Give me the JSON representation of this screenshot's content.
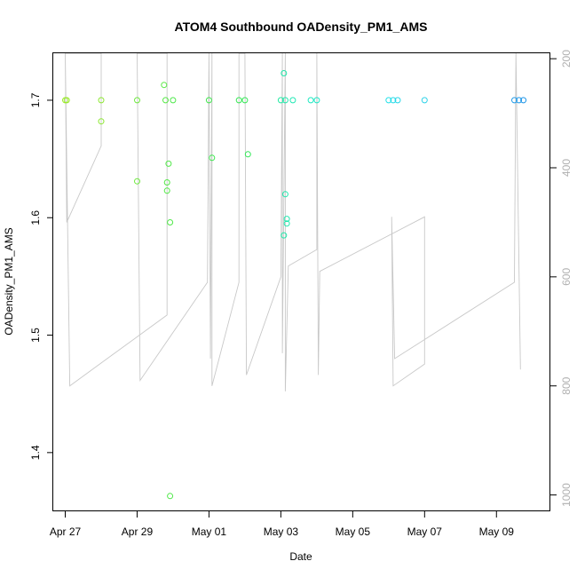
{
  "chart_data": {
    "type": "scatter",
    "title": "ATOM4 Southbound OADensity_PM1_AMS",
    "xlabel": "Date",
    "ylabel": "OADensity_PM1_AMS",
    "x_ticks": [
      "Apr 27",
      "Apr 29",
      "May 01",
      "May 03",
      "May 05",
      "May 07",
      "May 09"
    ],
    "xlim": [
      "2021-04-26T16:00",
      "2021-05-10T12:00"
    ],
    "ylim": [
      1.35,
      1.74
    ],
    "y_ticks": [
      1.4,
      1.5,
      1.6,
      1.7
    ],
    "y2_ticks": [
      200,
      400,
      600,
      800,
      1000
    ],
    "y2lim_top_to_bottom": [
      190,
      1030
    ],
    "grid": false,
    "series": [
      {
        "type": "scatter",
        "marker": "open-circle",
        "points": [
          {
            "x": "2021-04-27T00:00",
            "y": 1.7,
            "color": "#9be82a"
          },
          {
            "x": "2021-04-27T01:00",
            "y": 1.7,
            "color": "#98e82b"
          },
          {
            "x": "2021-04-28T00:00",
            "y": 1.7,
            "color": "#8de832"
          },
          {
            "x": "2021-04-28T00:00",
            "y": 1.682,
            "color": "#8de832"
          },
          {
            "x": "2021-04-29T00:00",
            "y": 1.7,
            "color": "#6ee83e"
          },
          {
            "x": "2021-04-29T00:00",
            "y": 1.631,
            "color": "#6ee83e"
          },
          {
            "x": "2021-04-29T18:00",
            "y": 1.713,
            "color": "#58e844"
          },
          {
            "x": "2021-04-29T19:00",
            "y": 1.7,
            "color": "#55e845"
          },
          {
            "x": "2021-04-29T20:00",
            "y": 1.63,
            "color": "#52e846"
          },
          {
            "x": "2021-04-29T20:00",
            "y": 1.623,
            "color": "#52e846"
          },
          {
            "x": "2021-04-29T21:00",
            "y": 1.646,
            "color": "#50e847"
          },
          {
            "x": "2021-04-29T22:00",
            "y": 1.596,
            "color": "#4fe848"
          },
          {
            "x": "2021-04-29T22:00",
            "y": 1.363,
            "color": "#4fe848"
          },
          {
            "x": "2021-04-30T00:00",
            "y": 1.7,
            "color": "#4ce849"
          },
          {
            "x": "2021-05-01T00:00",
            "y": 1.7,
            "color": "#3fe84d"
          },
          {
            "x": "2021-05-01T02:00",
            "y": 1.651,
            "color": "#3de84e"
          },
          {
            "x": "2021-05-01T20:00",
            "y": 1.7,
            "color": "#34e853"
          },
          {
            "x": "2021-05-02T00:00",
            "y": 1.7,
            "color": "#32e855"
          },
          {
            "x": "2021-05-02T02:00",
            "y": 1.654,
            "color": "#30e856"
          },
          {
            "x": "2021-05-03T00:00",
            "y": 1.7,
            "color": "#22e8a2"
          },
          {
            "x": "2021-05-03T02:00",
            "y": 1.723,
            "color": "#20e8aa"
          },
          {
            "x": "2021-05-03T03:00",
            "y": 1.7,
            "color": "#20e8ac"
          },
          {
            "x": "2021-05-03T03:00",
            "y": 1.62,
            "color": "#20e8ac"
          },
          {
            "x": "2021-05-03T04:00",
            "y": 1.599,
            "color": "#1fe8ae"
          },
          {
            "x": "2021-05-03T04:00",
            "y": 1.595,
            "color": "#1fe8ae"
          },
          {
            "x": "2021-05-03T02:00",
            "y": 1.585,
            "color": "#20e8aa"
          },
          {
            "x": "2021-05-03T08:00",
            "y": 1.7,
            "color": "#1ee8b4"
          },
          {
            "x": "2021-05-03T20:00",
            "y": 1.7,
            "color": "#1de8c0"
          },
          {
            "x": "2021-05-04T00:00",
            "y": 1.7,
            "color": "#1ce8c5"
          },
          {
            "x": "2021-05-06T00:00",
            "y": 1.7,
            "color": "#22e0e8"
          },
          {
            "x": "2021-05-06T03:00",
            "y": 1.7,
            "color": "#24dbe8"
          },
          {
            "x": "2021-05-06T06:00",
            "y": 1.7,
            "color": "#26d6e8"
          },
          {
            "x": "2021-05-07T00:00",
            "y": 1.7,
            "color": "#2cd2e8"
          },
          {
            "x": "2021-05-09T12:00",
            "y": 1.7,
            "color": "#1f9ae8"
          },
          {
            "x": "2021-05-09T15:00",
            "y": 1.7,
            "color": "#1f98e8"
          },
          {
            "x": "2021-05-09T18:00",
            "y": 1.7,
            "color": "#1f96e8"
          }
        ]
      },
      {
        "type": "line",
        "axis": "right",
        "color": "#c8c8c8",
        "points": [
          [
            "2021-04-27T00:00",
            190
          ],
          [
            "2021-04-27T01:00",
            500
          ],
          [
            "2021-04-28T00:00",
            360
          ],
          [
            "2021-04-28T00:00",
            190
          ],
          [
            "2021-04-27T00:00",
            190
          ],
          [
            "2021-04-27T03:00",
            800
          ],
          [
            "2021-04-29T20:00",
            670
          ],
          [
            "2021-04-29T20:00",
            190
          ],
          [
            "2021-04-29T00:00",
            190
          ],
          [
            "2021-04-29T02:00",
            790
          ],
          [
            "2021-04-30T23:00",
            610
          ],
          [
            "2021-05-01T00:00",
            190
          ],
          [
            "2021-05-01T01:00",
            750
          ],
          [
            "2021-05-01T02:00",
            190
          ],
          [
            "2021-05-01T02:00",
            800
          ],
          [
            "2021-05-01T20:00",
            610
          ],
          [
            "2021-05-01T20:00",
            190
          ],
          [
            "2021-05-02T00:00",
            190
          ],
          [
            "2021-05-02T01:00",
            780
          ],
          [
            "2021-05-03T00:00",
            600
          ],
          [
            "2021-05-03T01:00",
            190
          ],
          [
            "2021-05-03T01:00",
            740
          ],
          [
            "2021-05-03T03:00",
            190
          ],
          [
            "2021-05-03T03:00",
            810
          ],
          [
            "2021-05-03T05:00",
            580
          ],
          [
            "2021-05-04T00:00",
            550
          ],
          [
            "2021-05-04T00:00",
            190
          ],
          [
            "2021-05-04T01:00",
            780
          ],
          [
            "2021-05-04T02:00",
            590
          ],
          [
            "2021-05-07T00:00",
            490
          ],
          [
            "2021-05-07T00:00",
            760
          ],
          [
            "2021-05-06T03:00",
            800
          ],
          [
            "2021-05-06T02:00",
            490
          ],
          [
            "2021-05-06T04:00",
            750
          ],
          [
            "2021-05-09T12:00",
            610
          ],
          [
            "2021-05-09T13:00",
            190
          ],
          [
            "2021-05-09T16:00",
            770
          ]
        ]
      }
    ]
  }
}
